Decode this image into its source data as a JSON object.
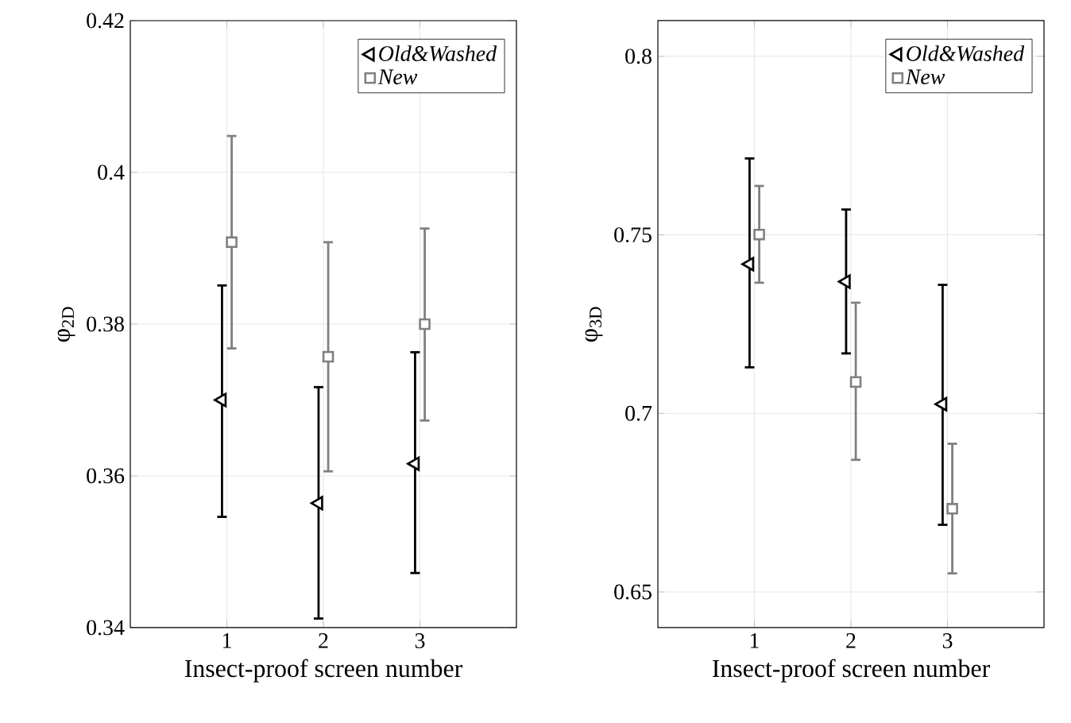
{
  "chart_data": [
    {
      "type": "scatter",
      "xlabel": "Insect-proof screen number",
      "ylabel": "φ$_{2D}$",
      "xlim": [
        0,
        4
      ],
      "xticks": [
        1,
        2,
        3
      ],
      "ylim": [
        0.34,
        0.42
      ],
      "yticks": [
        0.34,
        0.36,
        0.38,
        0.4,
        0.42
      ],
      "grid": true,
      "legend": "top right",
      "series": [
        {
          "name": "Old&Washed",
          "color": "#000000",
          "marker": "triangle",
          "x": [
            0.95,
            1.95,
            2.95
          ],
          "values": [
            0.37,
            0.3564,
            0.3616
          ],
          "errors": [
            [
              0.3546,
              0.3851
            ],
            [
              0.3412,
              0.3717
            ],
            [
              0.3472,
              0.3763
            ]
          ]
        },
        {
          "name": "New",
          "color": "#808080",
          "marker": "square",
          "x": [
            1.05,
            2.05,
            3.05
          ],
          "values": [
            0.3908,
            0.3757,
            0.38
          ],
          "errors": [
            [
              0.3768,
              0.4048
            ],
            [
              0.3606,
              0.3908
            ],
            [
              0.3673,
              0.3926
            ]
          ]
        }
      ]
    },
    {
      "type": "scatter",
      "xlabel": "Insect-proof screen number",
      "ylabel": "φ$_{3D}$",
      "xlim": [
        0,
        4
      ],
      "xticks": [
        1,
        2,
        3
      ],
      "ylim": [
        0.64,
        0.81
      ],
      "yticks": [
        0.65,
        0.7,
        0.75,
        0.8
      ],
      "grid": true,
      "legend": "top right",
      "series": [
        {
          "name": "Old&Washed",
          "color": "#000000",
          "marker": "triangle",
          "x": [
            0.95,
            1.95,
            2.95
          ],
          "values": [
            0.7418,
            0.7369,
            0.7026
          ],
          "errors": [
            [
              0.7129,
              0.7714
            ],
            [
              0.7168,
              0.7571
            ],
            [
              0.6688,
              0.736
            ]
          ]
        },
        {
          "name": "New",
          "color": "#808080",
          "marker": "square",
          "x": [
            1.05,
            2.05,
            3.05
          ],
          "values": [
            0.7501,
            0.7088,
            0.6733
          ],
          "errors": [
            [
              0.7366,
              0.7637
            ],
            [
              0.687,
              0.731
            ],
            [
              0.6552,
              0.6915
            ]
          ]
        }
      ]
    }
  ]
}
